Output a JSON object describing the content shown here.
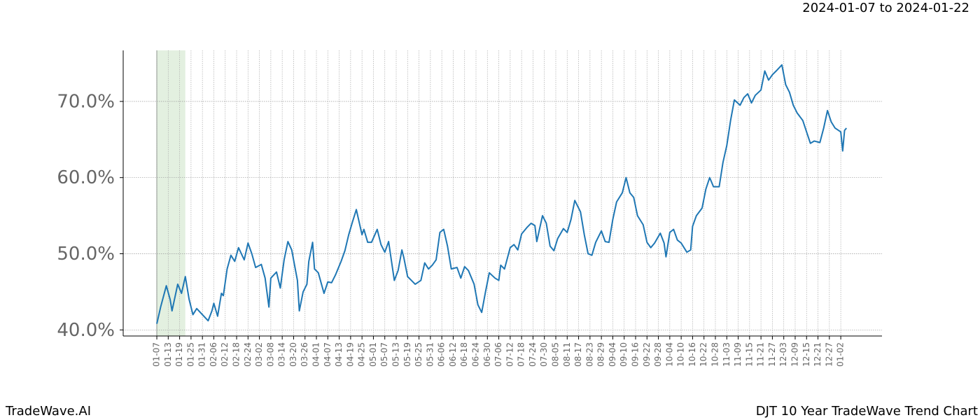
{
  "chart_data": {
    "type": "line",
    "title": "2024-01-07 to 2024-01-22",
    "footer_left": "TradeWave.AI",
    "footer_right": "DJT 10 Year TradeWave Trend Chart",
    "highlight": {
      "x": [
        0,
        15
      ],
      "color": "#e3f0e0"
    },
    "x": [
      0,
      2,
      5,
      7,
      8,
      11,
      13,
      15,
      17,
      19,
      21,
      24,
      27,
      29,
      30,
      32,
      34,
      35,
      37,
      39,
      41,
      43,
      46,
      48,
      50,
      52,
      55,
      57,
      59,
      60,
      63,
      65,
      67,
      69,
      71,
      74,
      75,
      77,
      79,
      80,
      82,
      83,
      85,
      88,
      90,
      92,
      94,
      97,
      99,
      101,
      103,
      105,
      108,
      109,
      111,
      113,
      116,
      118,
      120,
      122,
      125,
      127,
      129,
      130,
      132,
      134,
      136,
      139,
      141,
      143,
      145,
      147,
      149,
      151,
      153,
      155,
      158,
      160,
      162,
      164,
      167,
      169,
      171,
      173,
      175,
      178,
      180,
      181,
      183,
      186,
      188,
      190,
      192,
      195,
      197,
      199,
      200,
      203,
      205,
      207,
      209,
      211,
      214,
      216,
      218,
      220,
      223,
      225,
      227,
      229,
      231,
      234,
      236,
      238,
      240,
      242,
      245,
      247,
      249,
      251,
      253,
      256,
      258,
      260,
      262,
      265,
      267,
      268,
      270,
      272,
      274,
      276,
      279,
      281,
      282,
      284,
      287,
      289,
      291,
      293,
      296,
      298,
      300,
      302,
      304,
      307,
      309,
      311,
      313,
      315,
      318,
      320,
      322,
      324,
      326,
      329,
      331,
      333,
      335,
      337,
      340,
      342,
      344,
      346,
      349,
      351,
      353,
      355,
      357,
      360,
      361,
      362,
      363
    ],
    "series": [
      {
        "color": "#1f77b4",
        "values": [
          40.8,
          43,
          45.8,
          44,
          42.5,
          46,
          44.8,
          47,
          44,
          42,
          42.8,
          42,
          41.2,
          42.5,
          43.5,
          41.8,
          44.8,
          44.5,
          48,
          49.8,
          49,
          50.8,
          49.2,
          51.4,
          50,
          48.2,
          48.6,
          46.8,
          43,
          46.8,
          47.6,
          45.5,
          49.2,
          51.6,
          50.5,
          46.5,
          42.5,
          45,
          46,
          49,
          51.5,
          48,
          47.5,
          44.8,
          46.3,
          46.2,
          47.2,
          49,
          50.4,
          52.5,
          54.2,
          55.8,
          52.5,
          53.2,
          51.5,
          51.5,
          53.2,
          51.2,
          50.2,
          51.6,
          46.5,
          47.8,
          50.5,
          49.5,
          47,
          46.5,
          46,
          46.5,
          48.8,
          48,
          48.5,
          49.2,
          52.8,
          53.2,
          51,
          48,
          48.2,
          46.8,
          48.3,
          47.8,
          46,
          43.3,
          42.3,
          45,
          47.5,
          46.8,
          46.5,
          48.5,
          48,
          50.8,
          51.2,
          50.5,
          52.6,
          53.5,
          54,
          53.7,
          51.6,
          55,
          54,
          51,
          50.4,
          52,
          53.3,
          52.8,
          54.5,
          57,
          55.5,
          52.5,
          50,
          49.8,
          51.5,
          53,
          51.6,
          51.5,
          54.5,
          56.8,
          58,
          60,
          58,
          57.4,
          55,
          53.8,
          51.5,
          50.8,
          51.4,
          52.7,
          51.4,
          49.6,
          52.8,
          53.2,
          51.8,
          51.4,
          50.2,
          50.5,
          53.6,
          55,
          56,
          58.5,
          60,
          58.8,
          58.8,
          62,
          64.2,
          67.5,
          70.2,
          69.5,
          70.5,
          71,
          69.8,
          70.8,
          71.5,
          74,
          72.8,
          73.5,
          74,
          74.8,
          72.2,
          71.2,
          69.5,
          68.5,
          67.5,
          66,
          64.5,
          64.8,
          64.6,
          66.5,
          68.8,
          67.3,
          66.5,
          66,
          63.5,
          66.2,
          66.5
        ]
      }
    ],
    "xlim": [
      -17.7,
      381.7
    ],
    "xticks": [
      {
        "value": 0,
        "label": "01-07"
      },
      {
        "value": 6,
        "label": "01-13"
      },
      {
        "value": 12,
        "label": "01-19"
      },
      {
        "value": 18,
        "label": "01-25"
      },
      {
        "value": 24,
        "label": "01-31"
      },
      {
        "value": 30,
        "label": "02-06"
      },
      {
        "value": 36,
        "label": "02-12"
      },
      {
        "value": 42,
        "label": "02-18"
      },
      {
        "value": 48,
        "label": "02-24"
      },
      {
        "value": 54,
        "label": "03-02"
      },
      {
        "value": 60,
        "label": "03-08"
      },
      {
        "value": 66,
        "label": "03-14"
      },
      {
        "value": 72,
        "label": "03-20"
      },
      {
        "value": 78,
        "label": "03-26"
      },
      {
        "value": 84,
        "label": "04-01"
      },
      {
        "value": 90,
        "label": "04-07"
      },
      {
        "value": 96,
        "label": "04-13"
      },
      {
        "value": 102,
        "label": "04-19"
      },
      {
        "value": 108,
        "label": "04-25"
      },
      {
        "value": 114,
        "label": "05-01"
      },
      {
        "value": 120,
        "label": "05-07"
      },
      {
        "value": 126,
        "label": "05-13"
      },
      {
        "value": 132,
        "label": "05-19"
      },
      {
        "value": 138,
        "label": "05-25"
      },
      {
        "value": 144,
        "label": "05-31"
      },
      {
        "value": 150,
        "label": "06-06"
      },
      {
        "value": 156,
        "label": "06-12"
      },
      {
        "value": 162,
        "label": "06-18"
      },
      {
        "value": 168,
        "label": "06-24"
      },
      {
        "value": 174,
        "label": "06-30"
      },
      {
        "value": 180,
        "label": "07-06"
      },
      {
        "value": 186,
        "label": "07-12"
      },
      {
        "value": 192,
        "label": "07-18"
      },
      {
        "value": 198,
        "label": "07-24"
      },
      {
        "value": 204,
        "label": "07-30"
      },
      {
        "value": 210,
        "label": "08-05"
      },
      {
        "value": 216,
        "label": "08-11"
      },
      {
        "value": 222,
        "label": "08-17"
      },
      {
        "value": 228,
        "label": "08-23"
      },
      {
        "value": 234,
        "label": "08-29"
      },
      {
        "value": 240,
        "label": "09-04"
      },
      {
        "value": 246,
        "label": "09-10"
      },
      {
        "value": 252,
        "label": "09-16"
      },
      {
        "value": 258,
        "label": "09-22"
      },
      {
        "value": 264,
        "label": "09-28"
      },
      {
        "value": 270,
        "label": "10-04"
      },
      {
        "value": 276,
        "label": "10-10"
      },
      {
        "value": 282,
        "label": "10-16"
      },
      {
        "value": 288,
        "label": "10-22"
      },
      {
        "value": 294,
        "label": "10-28"
      },
      {
        "value": 300,
        "label": "11-03"
      },
      {
        "value": 306,
        "label": "11-09"
      },
      {
        "value": 312,
        "label": "11-15"
      },
      {
        "value": 318,
        "label": "11-21"
      },
      {
        "value": 324,
        "label": "11-27"
      },
      {
        "value": 330,
        "label": "12-03"
      },
      {
        "value": 336,
        "label": "12-09"
      },
      {
        "value": 342,
        "label": "12-15"
      },
      {
        "value": 348,
        "label": "12-21"
      },
      {
        "value": 354,
        "label": "12-27"
      },
      {
        "value": 360,
        "label": "01-02"
      }
    ],
    "ylim": [
      39.2,
      76.7
    ],
    "yticks": [
      {
        "value": 40,
        "label": "40.0%"
      },
      {
        "value": 50,
        "label": "50.0%"
      },
      {
        "value": 60,
        "label": "60.0%"
      },
      {
        "value": 70,
        "label": "70.0%"
      }
    ],
    "grid": true
  }
}
